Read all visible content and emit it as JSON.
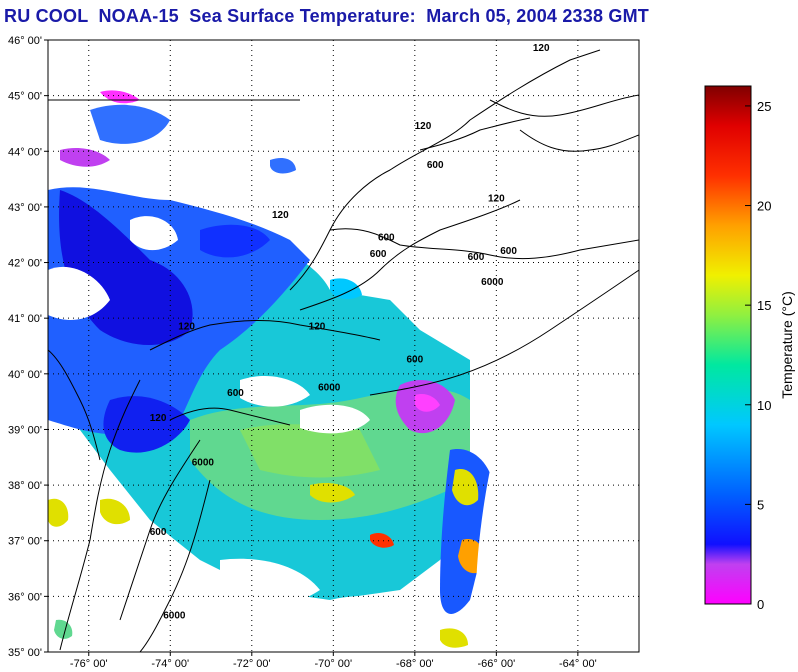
{
  "title": "RU COOL  NOAA-15  Sea Surface Temperature:  March 05, 2004 2338 GMT",
  "map": {
    "lon_range": [
      -77,
      -62.5
    ],
    "lat_range": [
      35,
      46
    ],
    "lat_ticks": [
      {
        "value": 46,
        "label": "46° 00'"
      },
      {
        "value": 45,
        "label": "45° 00'"
      },
      {
        "value": 44,
        "label": "44° 00'"
      },
      {
        "value": 43,
        "label": "43° 00'"
      },
      {
        "value": 42,
        "label": "42° 00'"
      },
      {
        "value": 41,
        "label": "41° 00'"
      },
      {
        "value": 40,
        "label": "40° 00'"
      },
      {
        "value": 39,
        "label": "39° 00'"
      },
      {
        "value": 38,
        "label": "38° 00'"
      },
      {
        "value": 37,
        "label": "37° 00'"
      },
      {
        "value": 36,
        "label": "36° 00'"
      },
      {
        "value": 35,
        "label": "35° 00'"
      }
    ],
    "lon_ticks": [
      {
        "value": -76,
        "label": "-76° 00'"
      },
      {
        "value": -74,
        "label": "-74° 00'"
      },
      {
        "value": -72,
        "label": "-72° 00'"
      },
      {
        "value": -70,
        "label": "-70° 00'"
      },
      {
        "value": -68,
        "label": "-68° 00'"
      },
      {
        "value": -66,
        "label": "-66° 00'"
      },
      {
        "value": -64,
        "label": "-64° 00'"
      }
    ],
    "contour_labels": [
      {
        "text": "120",
        "lon": -64.9,
        "lat": 45.8
      },
      {
        "text": "120",
        "lon": -67.8,
        "lat": 44.4
      },
      {
        "text": "600",
        "lon": -67.5,
        "lat": 43.7
      },
      {
        "text": "120",
        "lon": -66.0,
        "lat": 43.1
      },
      {
        "text": "120",
        "lon": -71.3,
        "lat": 42.8
      },
      {
        "text": "600",
        "lon": -68.7,
        "lat": 42.4
      },
      {
        "text": "600",
        "lon": -68.9,
        "lat": 42.1
      },
      {
        "text": "600",
        "lon": -66.5,
        "lat": 42.05
      },
      {
        "text": "600",
        "lon": -65.7,
        "lat": 42.15
      },
      {
        "text": "6000",
        "lon": -66.1,
        "lat": 41.6
      },
      {
        "text": "120",
        "lon": -73.6,
        "lat": 40.8
      },
      {
        "text": "120",
        "lon": -70.4,
        "lat": 40.8
      },
      {
        "text": "600",
        "lon": -68.0,
        "lat": 40.2
      },
      {
        "text": "6000",
        "lon": -70.1,
        "lat": 39.7
      },
      {
        "text": "600",
        "lon": -72.4,
        "lat": 39.6
      },
      {
        "text": "120",
        "lon": -74.3,
        "lat": 39.15
      },
      {
        "text": "6000",
        "lon": -73.2,
        "lat": 38.35
      },
      {
        "text": "600",
        "lon": -74.3,
        "lat": 37.1
      },
      {
        "text": "6000",
        "lon": -73.9,
        "lat": 35.6
      }
    ],
    "colors": {
      "contour": "#000000",
      "grid": "#000000",
      "warm_patch": "#e0e000",
      "cloud": "#ffffff"
    }
  },
  "colorbar": {
    "label": "Temperature (°C)",
    "range": [
      0,
      26
    ],
    "ticks": [
      {
        "value": 0,
        "label": "0"
      },
      {
        "value": 5,
        "label": "5"
      },
      {
        "value": 10,
        "label": "10"
      },
      {
        "value": 15,
        "label": "15"
      },
      {
        "value": 20,
        "label": "20"
      },
      {
        "value": 25,
        "label": "25"
      }
    ],
    "stops": [
      {
        "value": 0,
        "color": "#ff00ff"
      },
      {
        "value": 2,
        "color": "#c040f0"
      },
      {
        "value": 3,
        "color": "#1010ff"
      },
      {
        "value": 5.5,
        "color": "#0060ff"
      },
      {
        "value": 9,
        "color": "#00c8ff"
      },
      {
        "value": 12,
        "color": "#00e8a0"
      },
      {
        "value": 14.5,
        "color": "#90f040"
      },
      {
        "value": 16.5,
        "color": "#f0f000"
      },
      {
        "value": 19,
        "color": "#ffa000"
      },
      {
        "value": 21.5,
        "color": "#ff3000"
      },
      {
        "value": 24,
        "color": "#e00000"
      },
      {
        "value": 26,
        "color": "#800000"
      }
    ]
  }
}
